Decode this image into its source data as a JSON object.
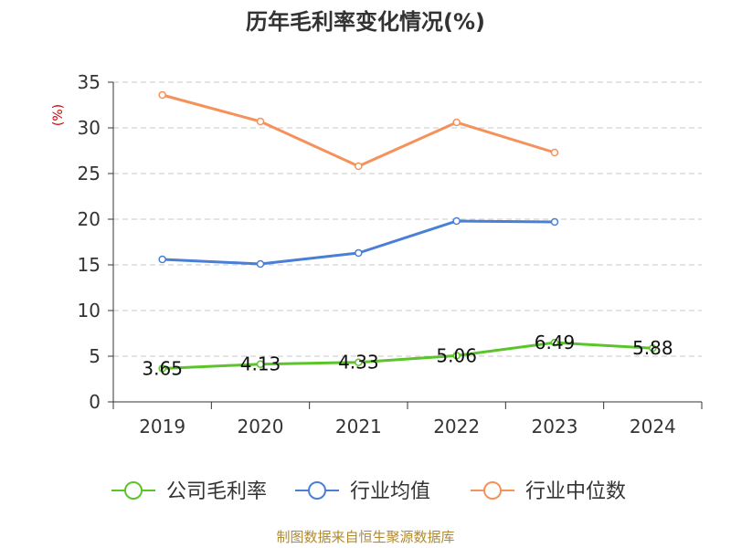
{
  "chart_data": {
    "type": "line",
    "title": "历年毛利率变化情况(%)",
    "y_unit": "(%)",
    "categories": [
      "2019",
      "2020",
      "2021",
      "2022",
      "2023",
      "2024"
    ],
    "ylim": [
      0,
      35
    ],
    "yticks": [
      "0",
      "5",
      "10",
      "15",
      "20",
      "25",
      "30",
      "35"
    ],
    "grid": true,
    "legend_position": "bottom",
    "series": [
      {
        "name": "公司毛利率",
        "color": "#5cc42b",
        "values": [
          3.65,
          4.13,
          4.33,
          5.06,
          6.49,
          5.88
        ],
        "labels": [
          "3.65",
          "4.13",
          "4.33",
          "5.06",
          "6.49",
          "5.88"
        ]
      },
      {
        "name": "行业均值",
        "color": "#4a7fd6",
        "values": [
          15.6,
          15.1,
          16.3,
          19.8,
          19.7,
          null
        ]
      },
      {
        "name": "行业中位数",
        "color": "#f5915a",
        "values": [
          33.6,
          30.7,
          25.8,
          30.6,
          27.3,
          null
        ]
      }
    ],
    "source": "制图数据来自恒生聚源数据库"
  }
}
